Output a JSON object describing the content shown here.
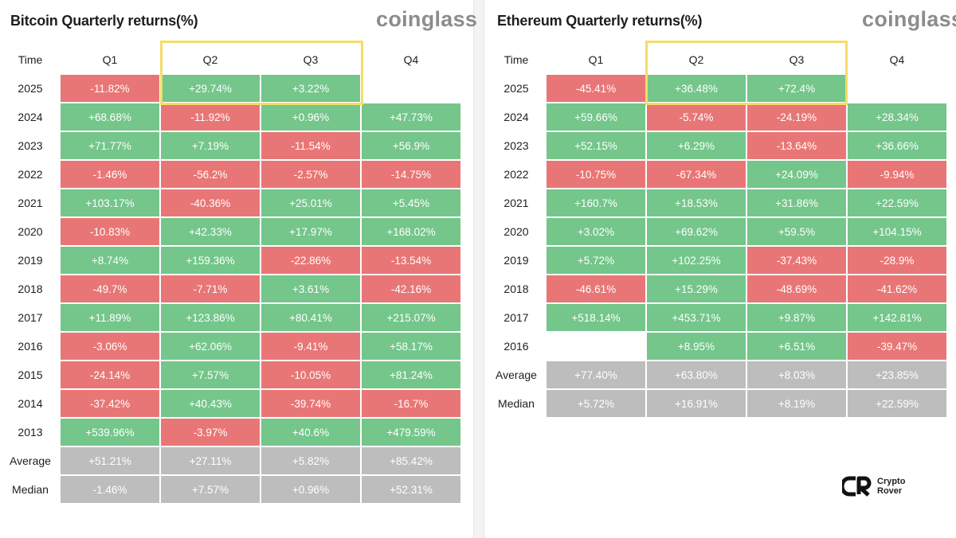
{
  "colors": {
    "positive": "#74c68b",
    "negative": "#e97676",
    "stat": "#bdbdbd",
    "highlight": "#f5dc6a"
  },
  "chart_data": [
    {
      "type": "table",
      "title": "Bitcoin Quarterly returns(%)",
      "brand": "coinglass",
      "columns": [
        "Time",
        "Q1",
        "Q2",
        "Q3",
        "Q4"
      ],
      "highlighted_columns": [
        "Q2",
        "Q3"
      ],
      "rows": [
        {
          "label": "2025",
          "values": [
            "-11.82%",
            "+29.74%",
            "+3.22%",
            ""
          ]
        },
        {
          "label": "2024",
          "values": [
            "+68.68%",
            "-11.92%",
            "+0.96%",
            "+47.73%"
          ]
        },
        {
          "label": "2023",
          "values": [
            "+71.77%",
            "+7.19%",
            "-11.54%",
            "+56.9%"
          ]
        },
        {
          "label": "2022",
          "values": [
            "-1.46%",
            "-56.2%",
            "-2.57%",
            "-14.75%"
          ]
        },
        {
          "label": "2021",
          "values": [
            "+103.17%",
            "-40.36%",
            "+25.01%",
            "+5.45%"
          ]
        },
        {
          "label": "2020",
          "values": [
            "-10.83%",
            "+42.33%",
            "+17.97%",
            "+168.02%"
          ]
        },
        {
          "label": "2019",
          "values": [
            "+8.74%",
            "+159.36%",
            "-22.86%",
            "-13.54%"
          ]
        },
        {
          "label": "2018",
          "values": [
            "-49.7%",
            "-7.71%",
            "+3.61%",
            "-42.16%"
          ]
        },
        {
          "label": "2017",
          "values": [
            "+11.89%",
            "+123.86%",
            "+80.41%",
            "+215.07%"
          ]
        },
        {
          "label": "2016",
          "values": [
            "-3.06%",
            "+62.06%",
            "-9.41%",
            "+58.17%"
          ]
        },
        {
          "label": "2015",
          "values": [
            "-24.14%",
            "+7.57%",
            "-10.05%",
            "+81.24%"
          ]
        },
        {
          "label": "2014",
          "values": [
            "-37.42%",
            "+40.43%",
            "-39.74%",
            "-16.7%"
          ]
        },
        {
          "label": "2013",
          "values": [
            "+539.96%",
            "-3.97%",
            "+40.6%",
            "+479.59%"
          ]
        }
      ],
      "stats": [
        {
          "label": "Average",
          "values": [
            "+51.21%",
            "+27.11%",
            "+5.82%",
            "+85.42%"
          ]
        },
        {
          "label": "Median",
          "values": [
            "-1.46%",
            "+7.57%",
            "+0.96%",
            "+52.31%"
          ]
        }
      ]
    },
    {
      "type": "table",
      "title": "Ethereum Quarterly returns(%)",
      "brand": "coinglass",
      "columns": [
        "Time",
        "Q1",
        "Q2",
        "Q3",
        "Q4"
      ],
      "highlighted_columns": [
        "Q2",
        "Q3"
      ],
      "rows": [
        {
          "label": "2025",
          "values": [
            "-45.41%",
            "+36.48%",
            "+72.4%",
            ""
          ]
        },
        {
          "label": "2024",
          "values": [
            "+59.66%",
            "-5.74%",
            "-24.19%",
            "+28.34%"
          ]
        },
        {
          "label": "2023",
          "values": [
            "+52.15%",
            "+6.29%",
            "-13.64%",
            "+36.66%"
          ]
        },
        {
          "label": "2022",
          "values": [
            "-10.75%",
            "-67.34%",
            "+24.09%",
            "-9.94%"
          ]
        },
        {
          "label": "2021",
          "values": [
            "+160.7%",
            "+18.53%",
            "+31.86%",
            "+22.59%"
          ]
        },
        {
          "label": "2020",
          "values": [
            "+3.02%",
            "+69.62%",
            "+59.5%",
            "+104.15%"
          ]
        },
        {
          "label": "2019",
          "values": [
            "+5.72%",
            "+102.25%",
            "-37.43%",
            "-28.9%"
          ]
        },
        {
          "label": "2018",
          "values": [
            "-46.61%",
            "+15.29%",
            "-48.69%",
            "-41.62%"
          ]
        },
        {
          "label": "2017",
          "values": [
            "+518.14%",
            "+453.71%",
            "+9.87%",
            "+142.81%"
          ]
        },
        {
          "label": "2016",
          "values": [
            "",
            "+8.95%",
            "+6.51%",
            "-39.47%"
          ]
        }
      ],
      "stats": [
        {
          "label": "Average",
          "values": [
            "+77.40%",
            "+63.80%",
            "+8.03%",
            "+23.85%"
          ]
        },
        {
          "label": "Median",
          "values": [
            "+5.72%",
            "+16.91%",
            "+8.19%",
            "+22.59%"
          ]
        }
      ]
    }
  ],
  "watermark": {
    "line1": "Crypto",
    "line2": "Rover"
  }
}
